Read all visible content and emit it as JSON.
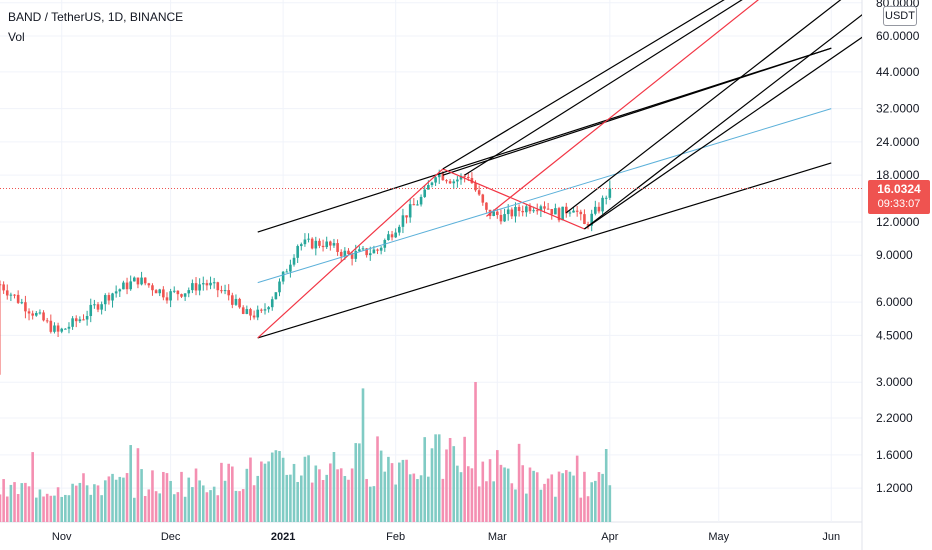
{
  "header": {
    "title": "BAND / TetherUS, 1D, BINANCE",
    "volume_label": "Vol"
  },
  "axis": {
    "unit": "USDT"
  },
  "price_tag": {
    "price": "16.0324",
    "countdown": "09:33:07"
  },
  "colors": {
    "up": "#26a69a",
    "down": "#ef5350",
    "vol_up": "#80cbc4",
    "vol_down": "#f48fb1",
    "trend": "#000000",
    "pitchfork": "#f23645",
    "fib": "#5bb0d9",
    "last_price_line": "#ef5350"
  },
  "chart_data": {
    "type": "candlestick",
    "scale": "log",
    "y_ticks": [
      1.2,
      1.6,
      2.2,
      3.0,
      4.5,
      6.0,
      9.0,
      12.0,
      18.0,
      24.0,
      32.0,
      44.0,
      60.0,
      80.0
    ],
    "y_tick_labels": [
      "1.2000",
      "1.6000",
      "2.2000",
      "3.0000",
      "4.5000",
      "6.0000",
      "9.0000",
      "12.0000",
      "18.0000",
      "24.0000",
      "32.0000",
      "44.0000",
      "60.0000",
      "80.0000"
    ],
    "x_labels": [
      "Nov",
      "Dec",
      "2021",
      "Feb",
      "Mar",
      "Apr",
      "May",
      "Jun"
    ],
    "last_price": 16.0324,
    "price_keypoints": [
      [
        "2020-10-15",
        7.0
      ],
      [
        "2020-10-22",
        5.8
      ],
      [
        "2020-10-31",
        4.6
      ],
      [
        "2020-11-07",
        5.3
      ],
      [
        "2020-11-14",
        6.4
      ],
      [
        "2020-11-22",
        7.3
      ],
      [
        "2020-11-30",
        6.4
      ],
      [
        "2020-12-05",
        6.6
      ],
      [
        "2020-12-10",
        7.1
      ],
      [
        "2020-12-17",
        6.4
      ],
      [
        "2020-12-21",
        5.4
      ],
      [
        "2020-12-26",
        5.4
      ],
      [
        "2020-12-31",
        7.0
      ],
      [
        "2021-01-05",
        9.9
      ],
      [
        "2021-01-12",
        10.0
      ],
      [
        "2021-01-19",
        9.0
      ],
      [
        "2021-01-27",
        9.4
      ],
      [
        "2021-02-03",
        12.5
      ],
      [
        "2021-02-09",
        15.2
      ],
      [
        "2021-02-12",
        18.5
      ],
      [
        "2021-02-17",
        17.2
      ],
      [
        "2021-02-21",
        18.0
      ],
      [
        "2021-02-26",
        13.0
      ],
      [
        "2021-03-03",
        12.6
      ],
      [
        "2021-03-08",
        13.5
      ],
      [
        "2021-03-13",
        14.1
      ],
      [
        "2021-03-18",
        12.8
      ],
      [
        "2021-03-22",
        13.8
      ],
      [
        "2021-03-25",
        11.6
      ],
      [
        "2021-03-29",
        13.6
      ],
      [
        "2021-04-01",
        16.03
      ]
    ],
    "volume_keypoints": [
      [
        "2020-10-15",
        0.25
      ],
      [
        "2020-11-07",
        0.3
      ],
      [
        "2020-12-10",
        0.35
      ],
      [
        "2021-01-05",
        0.5
      ],
      [
        "2021-02-05",
        0.55
      ],
      [
        "2021-02-20",
        0.6
      ],
      [
        "2021-03-10",
        0.35
      ],
      [
        "2021-04-01",
        0.3
      ]
    ],
    "drawings": [
      {
        "type": "trendline",
        "color": "trend",
        "from": [
          "2020-12-25",
          11.0
        ],
        "to": [
          "2021-06-01",
          54.0
        ]
      },
      {
        "type": "trendline",
        "color": "trend",
        "from": [
          "2020-12-25",
          4.4
        ],
        "to": [
          "2021-06-01",
          20.0
        ]
      },
      {
        "type": "trendline",
        "color": "trend",
        "from": [
          "2021-02-14",
          18.0
        ],
        "to": [
          "2021-06-01",
          54.0
        ]
      },
      {
        "type": "trendline",
        "color": "pitchfork",
        "from": [
          "2020-12-25",
          4.4
        ],
        "to": [
          "2021-02-14",
          19.0
        ]
      },
      {
        "type": "trendline",
        "color": "pitchfork",
        "from": [
          "2021-02-14",
          19.0
        ],
        "to": [
          "2021-03-25",
          11.3
        ]
      },
      {
        "type": "trendline",
        "color": "pitchfork",
        "from": [
          "2021-02-26",
          12.6
        ],
        "to": [
          "2021-06-10",
          170.0
        ]
      },
      {
        "type": "trendline",
        "color": "fib",
        "from": [
          "2020-12-25",
          7.1
        ],
        "to": [
          "2021-06-01",
          32.0
        ]
      },
      {
        "type": "trendline",
        "color": "trend",
        "from": [
          "2021-02-14",
          19.0
        ],
        "to": [
          "2021-06-10",
          170.0
        ]
      },
      {
        "type": "trendline",
        "color": "trend",
        "from": [
          "2021-02-20",
          18.0
        ],
        "to": [
          "2021-06-10",
          160.0
        ]
      },
      {
        "type": "trendline",
        "color": "trend",
        "from": [
          "2021-03-20",
          13.0
        ],
        "to": [
          "2021-06-10",
          96.0
        ]
      },
      {
        "type": "trendline",
        "color": "trend",
        "from": [
          "2021-03-25",
          11.3
        ],
        "to": [
          "2021-06-10",
          73.0
        ]
      },
      {
        "type": "trendline",
        "color": "trend",
        "from": [
          "2021-03-25",
          11.3
        ],
        "to": [
          "2021-06-10",
          60.0
        ]
      }
    ]
  }
}
